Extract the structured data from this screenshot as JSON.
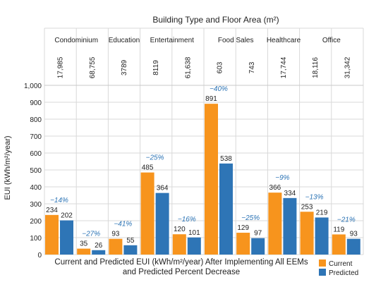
{
  "chart_data": {
    "type": "bar",
    "top_title": "Building Type and Floor Area (m²)",
    "bottom_title_line1": "Current and Predicted EUI (kWh/m²/year) After Implementing All EEMs",
    "bottom_title_line2": "and Predicted Percent Decrease",
    "ylabel": "EUI (kWh/m²/year)",
    "ylim": [
      0,
      1000
    ],
    "yticks": [
      "0",
      "100",
      "200",
      "300",
      "400",
      "500",
      "600",
      "700",
      "800",
      "900",
      "1,000"
    ],
    "grid": true,
    "legend_position": "bottom-right",
    "colors": {
      "current": "#f7941d",
      "predicted": "#2e75b6",
      "percent": "#2e75b6"
    },
    "series": [
      {
        "name": "Current",
        "values": [
          234,
          35,
          93,
          485,
          120,
          891,
          129,
          366,
          253,
          119
        ]
      },
      {
        "name": "Predicted",
        "values": [
          202,
          26,
          55,
          364,
          101,
          538,
          97,
          334,
          219,
          93
        ]
      }
    ],
    "value_labels_current": [
      "234",
      "35",
      "93",
      "485",
      "120",
      "891",
      "129",
      "366",
      "253",
      "119"
    ],
    "value_labels_predicted": [
      "202",
      "26",
      "55",
      "364",
      "101",
      "538",
      "97",
      "334",
      "219",
      "93"
    ],
    "percent_decrease": [
      "−14%",
      "−27%",
      "−41%",
      "−25%",
      "−16%",
      "−40%",
      "−25%",
      "−9%",
      "−13%",
      "−21%"
    ],
    "floor_areas": [
      "17,985",
      "68,755",
      "3789",
      "8119",
      "61,638",
      "603",
      "743",
      "17,744",
      "18,116",
      "31,342"
    ],
    "building_types": [
      {
        "label": "Condominium",
        "start": 0,
        "count": 2
      },
      {
        "label": "Education",
        "start": 2,
        "count": 1
      },
      {
        "label": "Entertainment",
        "start": 3,
        "count": 2
      },
      {
        "label": "Food Sales",
        "start": 5,
        "count": 2
      },
      {
        "label": "Healthcare",
        "start": 7,
        "count": 1
      },
      {
        "label": "Office",
        "start": 8,
        "count": 2
      }
    ]
  }
}
